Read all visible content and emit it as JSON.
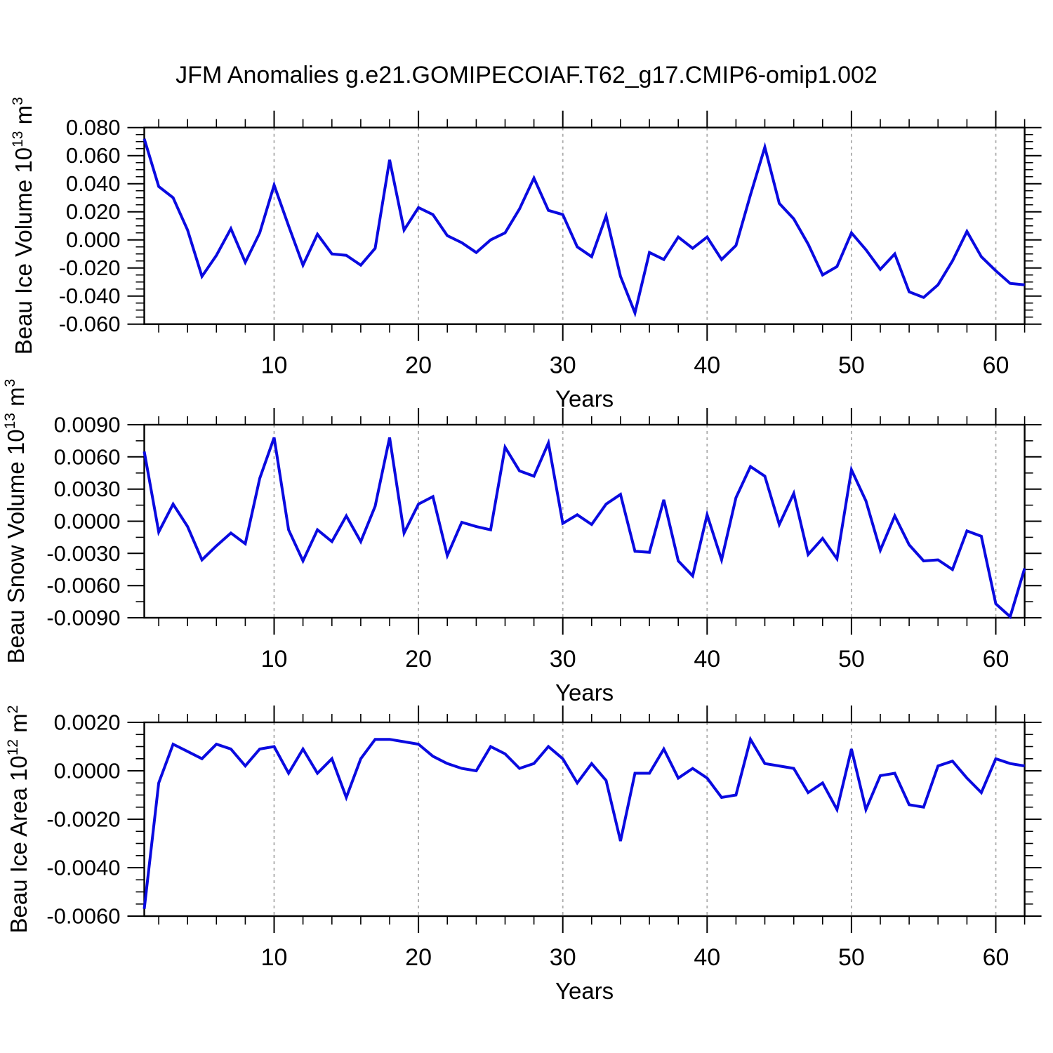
{
  "title": "JFM Anomalies g.e21.GOMIPECOIAF.T62_g17.CMIP6-omip1.002",
  "style": {
    "line_color": "#0a0ae0",
    "grid_color": "#ababab",
    "axis_color": "#000000",
    "background": "#ffffff"
  },
  "chart_data": [
    {
      "type": "line",
      "name": "beau-ice-volume",
      "title": "",
      "ylabel": "Beau Ice Volume 10^13 m^3",
      "xlabel": "Years",
      "legend_position": "none",
      "grid": "vertical-dashed",
      "xlim": [
        1,
        62
      ],
      "ylim": [
        -0.06,
        0.08
      ],
      "xticks": [
        10,
        20,
        30,
        40,
        50,
        60
      ],
      "xtick_labels": [
        "10",
        "20",
        "30",
        "40",
        "50",
        "60"
      ],
      "x_minor_start": 2,
      "x_minor_step": 2,
      "yticks": [
        0.08,
        0.06,
        0.04,
        0.02,
        0.0,
        -0.02,
        -0.04,
        -0.06
      ],
      "ytick_labels": [
        "0.080",
        "0.060",
        "0.040",
        "0.020",
        "0.000",
        "-0.020",
        "-0.040",
        "-0.060"
      ],
      "y_minor_step": 0.005,
      "x_start_year": 1,
      "values": [
        0.072,
        0.038,
        0.03,
        0.007,
        -0.026,
        -0.011,
        0.008,
        -0.016,
        0.005,
        0.039,
        0.01,
        -0.018,
        0.004,
        -0.01,
        -0.011,
        -0.018,
        -0.006,
        0.057,
        0.007,
        0.023,
        0.018,
        0.003,
        -0.002,
        -0.009,
        0.0,
        0.005,
        0.022,
        0.044,
        0.021,
        0.018,
        -0.005,
        -0.012,
        0.017,
        -0.026,
        -0.052,
        -0.009,
        -0.014,
        0.002,
        -0.006,
        0.002,
        -0.014,
        -0.004,
        0.032,
        0.066,
        0.026,
        0.015,
        -0.003,
        -0.025,
        -0.019,
        0.005,
        -0.007,
        -0.021,
        -0.01,
        -0.037,
        -0.041,
        -0.032,
        -0.015,
        0.006,
        -0.012,
        -0.022,
        -0.031,
        -0.032
      ]
    },
    {
      "type": "line",
      "name": "beau-snow-volume",
      "title": "",
      "ylabel": "Beau Snow Volume 10^13 m^3",
      "xlabel": "Years",
      "legend_position": "none",
      "grid": "vertical-dashed",
      "xlim": [
        1,
        62
      ],
      "ylim": [
        -0.009,
        0.009
      ],
      "xticks": [
        10,
        20,
        30,
        40,
        50,
        60
      ],
      "xtick_labels": [
        "10",
        "20",
        "30",
        "40",
        "50",
        "60"
      ],
      "x_minor_start": 2,
      "x_minor_step": 2,
      "yticks": [
        0.009,
        0.006,
        0.003,
        0.0,
        -0.003,
        -0.006,
        -0.009
      ],
      "ytick_labels": [
        "0.0090",
        "0.0060",
        "0.0030",
        "0.0000",
        "-0.0030",
        "-0.0060",
        "-0.0090"
      ],
      "y_minor_step": 0.0015,
      "x_start_year": 1,
      "values": [
        0.0065,
        -0.001,
        0.0016,
        -0.0005,
        -0.0036,
        -0.0023,
        -0.0011,
        -0.0021,
        0.004,
        0.0078,
        -0.0008,
        -0.0037,
        -0.0008,
        -0.0019,
        0.0005,
        -0.0019,
        0.0014,
        0.0078,
        -0.0011,
        0.0016,
        0.0023,
        -0.0032,
        -0.0001,
        -0.0005,
        -0.0008,
        0.0069,
        0.0047,
        0.0042,
        0.0073,
        -0.0002,
        0.0006,
        -0.0003,
        0.0016,
        0.0025,
        -0.0028,
        -0.0029,
        0.002,
        -0.0037,
        -0.0051,
        0.0006,
        -0.0036,
        0.0022,
        0.0051,
        0.0042,
        -0.0003,
        0.0026,
        -0.0031,
        -0.0016,
        -0.0035,
        0.0048,
        0.0019,
        -0.0027,
        0.0005,
        -0.0022,
        -0.0037,
        -0.0036,
        -0.0045,
        -0.0009,
        -0.0014,
        -0.0077,
        -0.0089,
        -0.0044
      ]
    },
    {
      "type": "line",
      "name": "beau-ice-area",
      "title": "",
      "ylabel": "Beau Ice Area 10^12 m^2",
      "xlabel": "Years",
      "legend_position": "none",
      "grid": "vertical-dashed",
      "xlim": [
        1,
        62
      ],
      "ylim": [
        -0.006,
        0.002
      ],
      "xticks": [
        10,
        20,
        30,
        40,
        50,
        60
      ],
      "xtick_labels": [
        "10",
        "20",
        "30",
        "40",
        "50",
        "60"
      ],
      "x_minor_start": 2,
      "x_minor_step": 2,
      "yticks": [
        0.002,
        0.0,
        -0.002,
        -0.004,
        -0.006
      ],
      "ytick_labels": [
        "0.0020",
        "0.0000",
        "-0.0020",
        "-0.0040",
        "-0.0060"
      ],
      "y_minor_step": 0.0005,
      "x_start_year": 1,
      "values": [
        -0.0057,
        -0.0005,
        0.0011,
        0.0008,
        0.0005,
        0.0011,
        0.0009,
        0.0002,
        0.0009,
        0.001,
        -0.0001,
        0.0009,
        -0.0001,
        0.0005,
        -0.0011,
        0.0005,
        0.0013,
        0.0013,
        0.0012,
        0.0011,
        0.0006,
        0.0003,
        0.0001,
        0.0,
        0.001,
        0.0007,
        0.0001,
        0.0003,
        0.001,
        0.0005,
        -0.0005,
        0.0003,
        -0.0004,
        -0.0029,
        -0.0001,
        -0.0001,
        0.0009,
        -0.0003,
        0.0001,
        -0.0003,
        -0.0011,
        -0.001,
        0.0013,
        0.0003,
        0.0002,
        0.0001,
        -0.0009,
        -0.0005,
        -0.0016,
        0.0009,
        -0.0016,
        -0.0002,
        -0.0001,
        -0.0014,
        -0.0015,
        0.0002,
        0.0004,
        -0.0003,
        -0.0009,
        0.0005,
        0.0003,
        0.0002
      ]
    }
  ]
}
